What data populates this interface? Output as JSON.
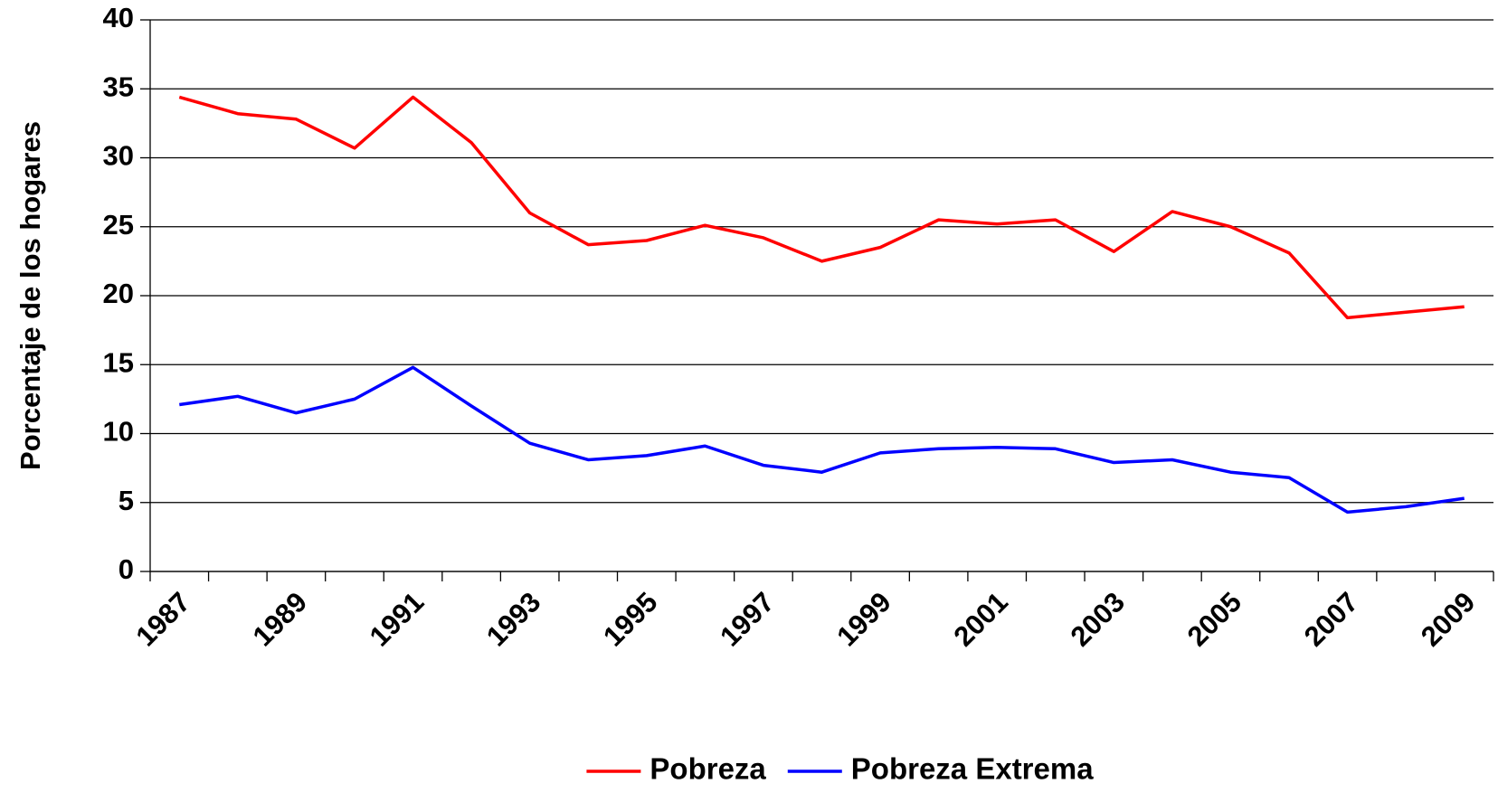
{
  "chart_data": {
    "type": "line",
    "y_label": "Porcentaje de los hogares",
    "categories": [
      "1987",
      null,
      "1989",
      null,
      "1991",
      null,
      "1993",
      null,
      "1995",
      null,
      "1997",
      null,
      "1999",
      null,
      "2001",
      null,
      "2003",
      null,
      "2005",
      null,
      "2007",
      null,
      "2009"
    ],
    "series": [
      {
        "name": "Pobreza",
        "color": "#ff0000",
        "values": [
          34.4,
          33.2,
          32.8,
          30.7,
          34.4,
          31.1,
          26.0,
          23.7,
          24.0,
          25.1,
          24.2,
          22.5,
          23.5,
          25.5,
          25.2,
          25.5,
          23.2,
          26.1,
          25.0,
          23.1,
          18.4,
          18.8,
          19.2
        ]
      },
      {
        "name": "Pobreza Extrema",
        "color": "#0000ff",
        "values": [
          12.1,
          12.7,
          11.5,
          12.5,
          14.8,
          12.0,
          9.3,
          8.1,
          8.4,
          9.1,
          7.7,
          7.2,
          8.6,
          8.9,
          9.0,
          8.9,
          7.9,
          8.1,
          7.2,
          6.8,
          4.3,
          4.7,
          5.3
        ]
      }
    ],
    "ylim": [
      0,
      40
    ],
    "yticks": [
      0,
      5,
      10,
      15,
      20,
      25,
      30,
      35,
      40
    ],
    "grid": true,
    "legend": "bottom"
  }
}
